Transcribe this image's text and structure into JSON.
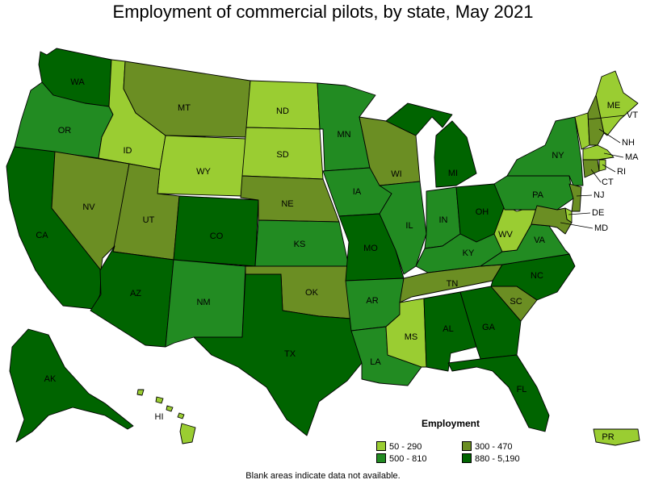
{
  "title": "Employment of commercial pilots, by state, May 2021",
  "legend": {
    "title": "Employment",
    "items": [
      {
        "label": "50 - 290",
        "color": "#9ACD32"
      },
      {
        "label": "300 - 470",
        "color": "#6B8E23"
      },
      {
        "label": "500 - 810",
        "color": "#228B22"
      },
      {
        "label": "880 - 5,190",
        "color": "#006400"
      }
    ]
  },
  "footnote": "Blank areas indicate data not available.",
  "states": [
    {
      "abbr": "WA",
      "color": "#006400"
    },
    {
      "abbr": "OR",
      "color": "#228B22"
    },
    {
      "abbr": "CA",
      "color": "#006400"
    },
    {
      "abbr": "ID",
      "color": "#9ACD32"
    },
    {
      "abbr": "NV",
      "color": "#6B8E23"
    },
    {
      "abbr": "MT",
      "color": "#6B8E23"
    },
    {
      "abbr": "WY",
      "color": "#9ACD32"
    },
    {
      "abbr": "UT",
      "color": "#6B8E23"
    },
    {
      "abbr": "AZ",
      "color": "#006400"
    },
    {
      "abbr": "CO",
      "color": "#006400"
    },
    {
      "abbr": "NM",
      "color": "#228B22"
    },
    {
      "abbr": "ND",
      "color": "#9ACD32"
    },
    {
      "abbr": "SD",
      "color": "#9ACD32"
    },
    {
      "abbr": "NE",
      "color": "#6B8E23"
    },
    {
      "abbr": "KS",
      "color": "#228B22"
    },
    {
      "abbr": "OK",
      "color": "#6B8E23"
    },
    {
      "abbr": "TX",
      "color": "#006400"
    },
    {
      "abbr": "MN",
      "color": "#228B22"
    },
    {
      "abbr": "IA",
      "color": "#228B22"
    },
    {
      "abbr": "MO",
      "color": "#006400"
    },
    {
      "abbr": "AR",
      "color": "#228B22"
    },
    {
      "abbr": "LA",
      "color": "#228B22"
    },
    {
      "abbr": "WI",
      "color": "#6B8E23"
    },
    {
      "abbr": "IL",
      "color": "#228B22"
    },
    {
      "abbr": "MI",
      "color": "#006400"
    },
    {
      "abbr": "IN",
      "color": "#228B22"
    },
    {
      "abbr": "OH",
      "color": "#006400"
    },
    {
      "abbr": "KY",
      "color": "#228B22"
    },
    {
      "abbr": "TN",
      "color": "#6B8E23"
    },
    {
      "abbr": "MS",
      "color": "#9ACD32"
    },
    {
      "abbr": "AL",
      "color": "#006400"
    },
    {
      "abbr": "GA",
      "color": "#006400"
    },
    {
      "abbr": "FL",
      "color": "#006400"
    },
    {
      "abbr": "SC",
      "color": "#6B8E23"
    },
    {
      "abbr": "NC",
      "color": "#006400"
    },
    {
      "abbr": "VA",
      "color": "#228B22"
    },
    {
      "abbr": "WV",
      "color": "#9ACD32"
    },
    {
      "abbr": "PA",
      "color": "#228B22"
    },
    {
      "abbr": "NY",
      "color": "#228B22"
    },
    {
      "abbr": "VT",
      "color": "#9ACD32"
    },
    {
      "abbr": "NH",
      "color": "#6B8E23"
    },
    {
      "abbr": "ME",
      "color": "#9ACD32"
    },
    {
      "abbr": "MA",
      "color": "#9ACD32"
    },
    {
      "abbr": "RI",
      "color": "#9ACD32"
    },
    {
      "abbr": "CT",
      "color": "#6B8E23"
    },
    {
      "abbr": "NJ",
      "color": "#6B8E23"
    },
    {
      "abbr": "DE",
      "color": "#9ACD32"
    },
    {
      "abbr": "MD",
      "color": "#6B8E23"
    },
    {
      "abbr": "AK",
      "color": "#006400"
    },
    {
      "abbr": "HI",
      "color": "#9ACD32"
    },
    {
      "abbr": "PR",
      "color": "#9ACD32"
    }
  ]
}
